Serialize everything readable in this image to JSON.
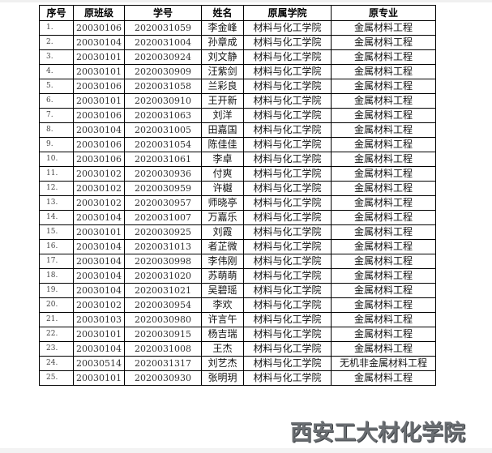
{
  "table": {
    "headers": [
      "序号",
      "原班级",
      "学号",
      "姓名",
      "原属学院",
      "原专业"
    ],
    "rows": [
      [
        "1.",
        "20030106",
        "2020031059",
        "李金峰",
        "材料与化工学院",
        "金属材料工程"
      ],
      [
        "2.",
        "20030104",
        "2020031004",
        "孙章成",
        "材料与化工学院",
        "金属材料工程"
      ],
      [
        "3.",
        "20030101",
        "2020030924",
        "刘文静",
        "材料与化工学院",
        "金属材料工程"
      ],
      [
        "4.",
        "20030101",
        "2020030909",
        "汪紫剑",
        "材料与化工学院",
        "金属材料工程"
      ],
      [
        "5.",
        "20030106",
        "2020031058",
        "兰彩良",
        "材料与化工学院",
        "金属材料工程"
      ],
      [
        "6.",
        "20030101",
        "2020030910",
        "王开新",
        "材料与化工学院",
        "金属材料工程"
      ],
      [
        "7.",
        "20030106",
        "2020031063",
        "刘洋",
        "材料与化工学院",
        "金属材料工程"
      ],
      [
        "8.",
        "20030104",
        "2020031005",
        "田嘉国",
        "材料与化工学院",
        "金属材料工程"
      ],
      [
        "9.",
        "20030106",
        "2020031054",
        "陈佳佳",
        "材料与化工学院",
        "金属材料工程"
      ],
      [
        "10.",
        "20030106",
        "2020031061",
        "李卓",
        "材料与化工学院",
        "金属材料工程"
      ],
      [
        "11.",
        "20030102",
        "2020030936",
        "付爽",
        "材料与化工学院",
        "金属材料工程"
      ],
      [
        "12.",
        "20030102",
        "2020030959",
        "许樾",
        "材料与化工学院",
        "金属材料工程"
      ],
      [
        "13.",
        "20030102",
        "2020030957",
        "师晓亭",
        "材料与化工学院",
        "金属材料工程"
      ],
      [
        "14.",
        "20030104",
        "2020031007",
        "万嘉乐",
        "材料与化工学院",
        "金属材料工程"
      ],
      [
        "15.",
        "20030101",
        "2020030925",
        "刘霞",
        "材料与化工学院",
        "金属材料工程"
      ],
      [
        "16.",
        "20030104",
        "2020031013",
        "者芷微",
        "材料与化工学院",
        "金属材料工程"
      ],
      [
        "17.",
        "20030104",
        "2020030998",
        "李伟刚",
        "材料与化工学院",
        "金属材料工程"
      ],
      [
        "18.",
        "20030104",
        "2020031020",
        "苏萌萌",
        "材料与化工学院",
        "金属材料工程"
      ],
      [
        "19.",
        "20030104",
        "2020031021",
        "吴碧瑶",
        "材料与化工学院",
        "金属材料工程"
      ],
      [
        "20.",
        "20030102",
        "2020030954",
        "李欢",
        "材料与化工学院",
        "金属材料工程"
      ],
      [
        "21.",
        "20030103",
        "2020030980",
        "许言午",
        "材料与化工学院",
        "金属材料工程"
      ],
      [
        "22.",
        "20030101",
        "2020030915",
        "杨吉瑞",
        "材料与化工学院",
        "金属材料工程"
      ],
      [
        "23.",
        "20030104",
        "2020031008",
        "王杰",
        "材料与化工学院",
        "金属材料工程"
      ],
      [
        "24.",
        "20030514",
        "2020031317",
        "刘艺杰",
        "材料与化工学院",
        "无机非金属材料工程"
      ],
      [
        "25.",
        "20030101",
        "2020030930",
        "张明玥",
        "材料与化工学院",
        "金属材料工程"
      ]
    ]
  },
  "watermark": "西安工大材化学院"
}
